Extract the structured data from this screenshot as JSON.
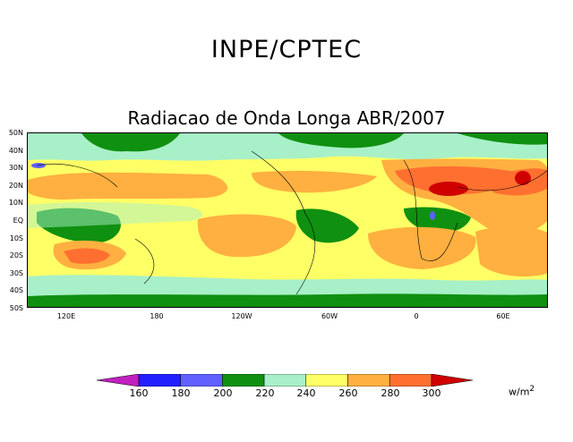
{
  "header": {
    "title": "INPE/CPTEC"
  },
  "map": {
    "title": "Radiacao de Onda Longa ABR/2007",
    "lat_labels": [
      "50N",
      "40N",
      "30N",
      "20N",
      "10N",
      "EQ",
      "10S",
      "20S",
      "30S",
      "40S",
      "50S"
    ],
    "lon_labels": [
      "120E",
      "180",
      "120W",
      "60W",
      "0",
      "60E"
    ]
  },
  "colorbar": {
    "values": [
      "160",
      "180",
      "200",
      "220",
      "240",
      "260",
      "280",
      "300"
    ],
    "colors": [
      "#c020c0",
      "#2020ff",
      "#6060ff",
      "#109010",
      "#a8f0c8",
      "#ffff66",
      "#ffb040",
      "#ff7030",
      "#d00000"
    ],
    "unit": "w/m",
    "unit_exp": "2"
  }
}
